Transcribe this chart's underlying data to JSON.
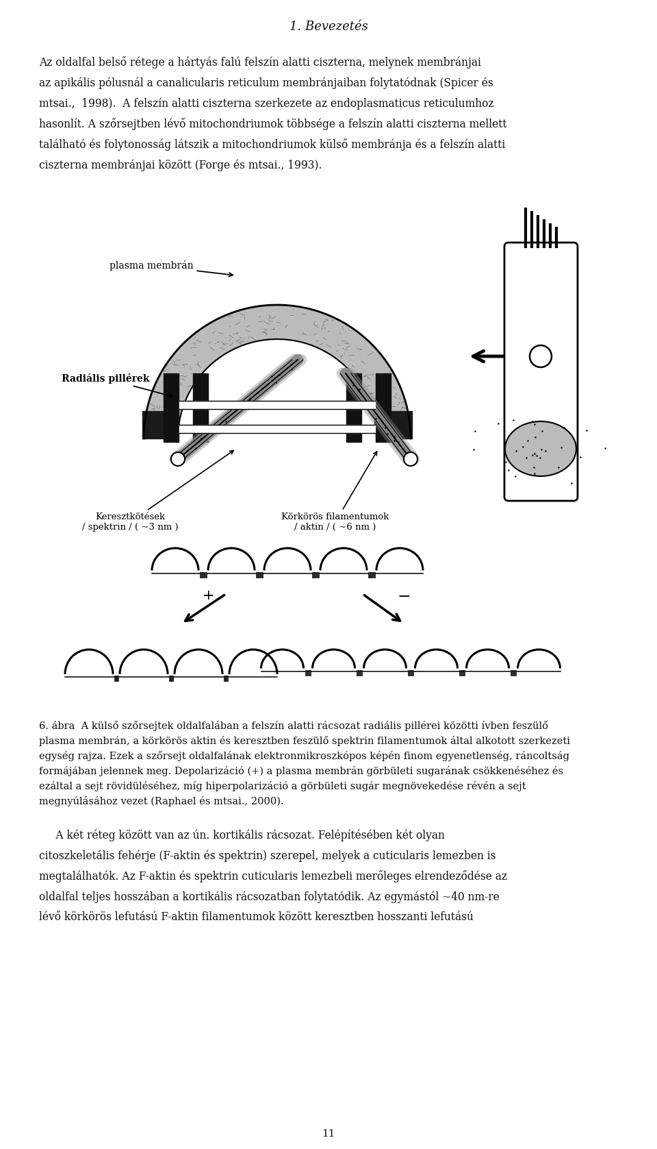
{
  "title": "1. Bevezetés",
  "background_color": "#ffffff",
  "text_color": "#111111",
  "page_number": "11",
  "para1_lines": [
    "Az oldalfal belső rétege a hártyás falú felszín alatti ciszterna, melynek membránjai",
    "az apikális pólusnál a canalicularis reticulum membránjaiban folytatódnak (Spicer és",
    "mtsai.,  1998).  A felszín alatti ciszterna szerkezete az endoplasmaticus reticulumhoz",
    "hasonlít. A szőrsejtben lévő mitochondriumok többsége a felszín alatti ciszterna mellett",
    "található és folytonosság látszik a mitochondriumok külső membránja és a felszín alatti",
    "ciszterna membránjai között (Forge és mtsai., 1993)."
  ],
  "caption_lines": [
    "6. ábra  A külső szőrsejtek oldalfalában a felszín alatti rácsozat radiális pillérei közötti ívben feszülő",
    "plasma membrán, a körkörös aktin és keresztben feszülő spektrin filamentumok által alkotott szerkezeti",
    "egység rajza. Ezek a szőrsejt oldalfalának elektronmikroszkópos képén finom egyenetlenség, ráncoltság",
    "formájában jelennek meg. Depolarizáció (+) a plasma membrán görbületi sugarának csökkenéséhez és",
    "ezáltal a sejt rövidüléséhez, míg hiperpolarizáció a görbületi sugár megnövekedése révén a sejt",
    "megnyúlásához vezet (Raphael és mtsai., 2000)."
  ],
  "para2_lines": [
    "     A két réteg között van az ún. kortikális rácsozat. Felépítésében két olyan",
    "citoszkeletális fehérje (F-aktin és spektrin) szerepel, melyek a cuticularis lemezben is",
    "megtalálhatók. Az F-aktin és spektrin cuticularis lemezbeli merőleges elrendeződése az",
    "oldalfal teljes hosszában a kortikális rácsozatban folytatódik. Az egymástól ~40 nm-re",
    "lévő körkörös lefutású F-aktin filamentumok között keresztben hosszanti lefutású"
  ]
}
